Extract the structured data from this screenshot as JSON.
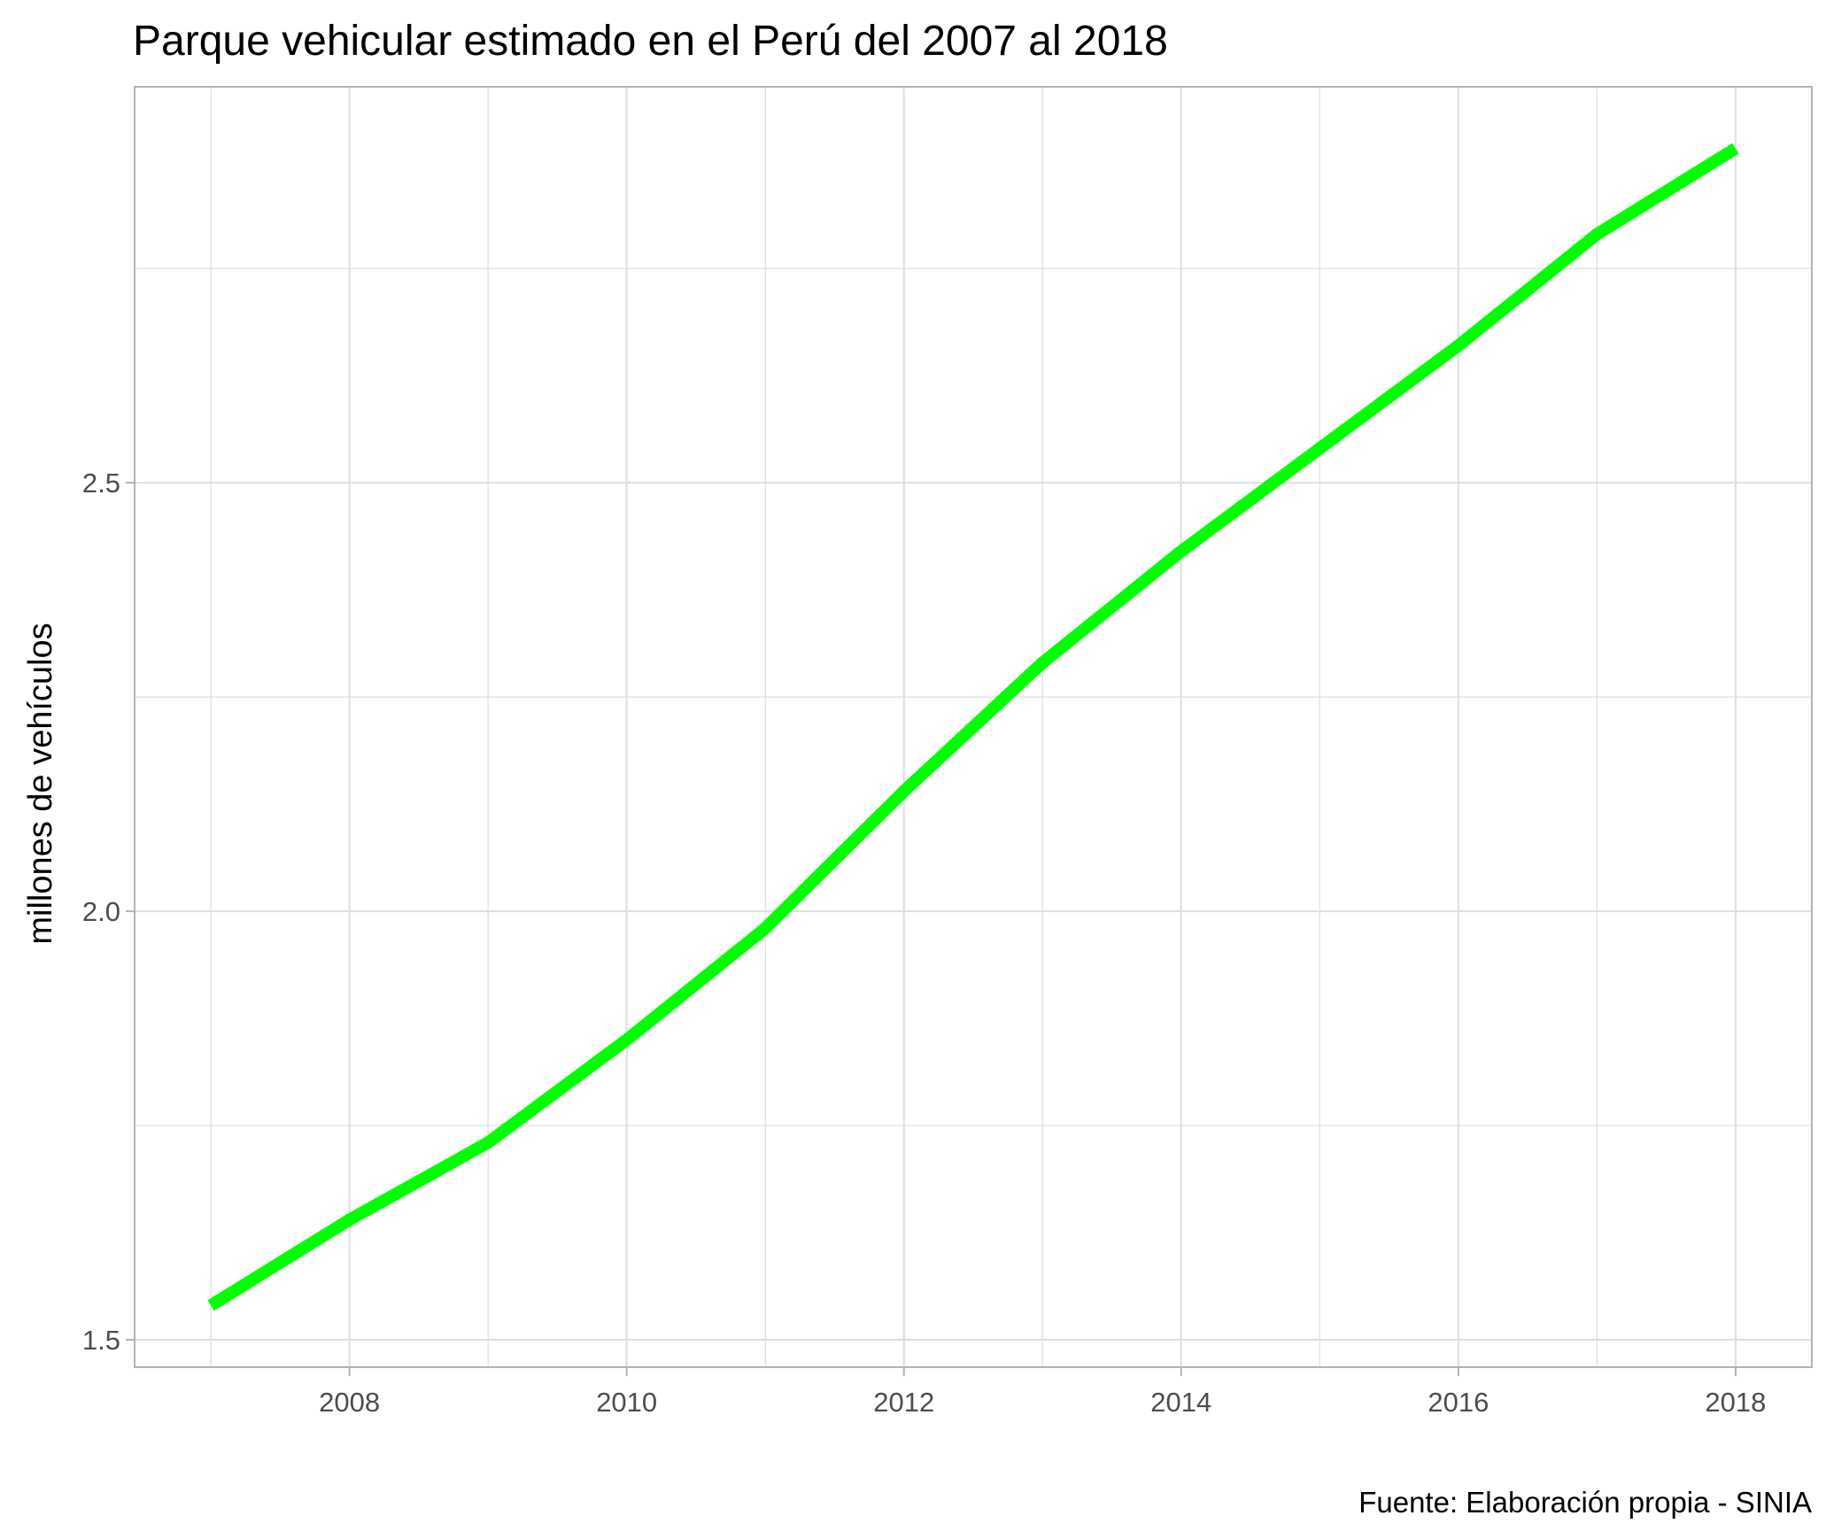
{
  "chart_data": {
    "type": "line",
    "title": "Parque vehicular estimado en el Perú del 2007 al 2018",
    "xlabel": "",
    "ylabel": "millones de vehículos",
    "caption": "Fuente: Elaboración propia - SINIA",
    "x": [
      2007,
      2008,
      2009,
      2010,
      2011,
      2012,
      2013,
      2014,
      2015,
      2016,
      2017,
      2018
    ],
    "series": [
      {
        "values": [
          1.54,
          1.64,
          1.73,
          1.85,
          1.98,
          2.14,
          2.29,
          2.42,
          2.54,
          2.66,
          2.79,
          2.89
        ]
      }
    ],
    "xlim": [
      2006.45,
      2018.55
    ],
    "ylim": [
      1.468,
      2.962
    ],
    "x_ticks": [
      2008,
      2010,
      2012,
      2014,
      2016,
      2018
    ],
    "x_tick_labels": [
      "2008",
      "2010",
      "2012",
      "2014",
      "2016",
      "2018"
    ],
    "y_ticks": [
      1.5,
      2.0,
      2.5
    ],
    "y_tick_labels": [
      "1.5",
      "2.0",
      "2.5"
    ],
    "grid": true,
    "legend": "none",
    "colors": {
      "line": "#00ff00",
      "grid": "#dedede",
      "panel_border": "#b3b3b3",
      "tick_text": "#4d4d4d",
      "text": "#000000",
      "background": "#ffffff"
    }
  }
}
